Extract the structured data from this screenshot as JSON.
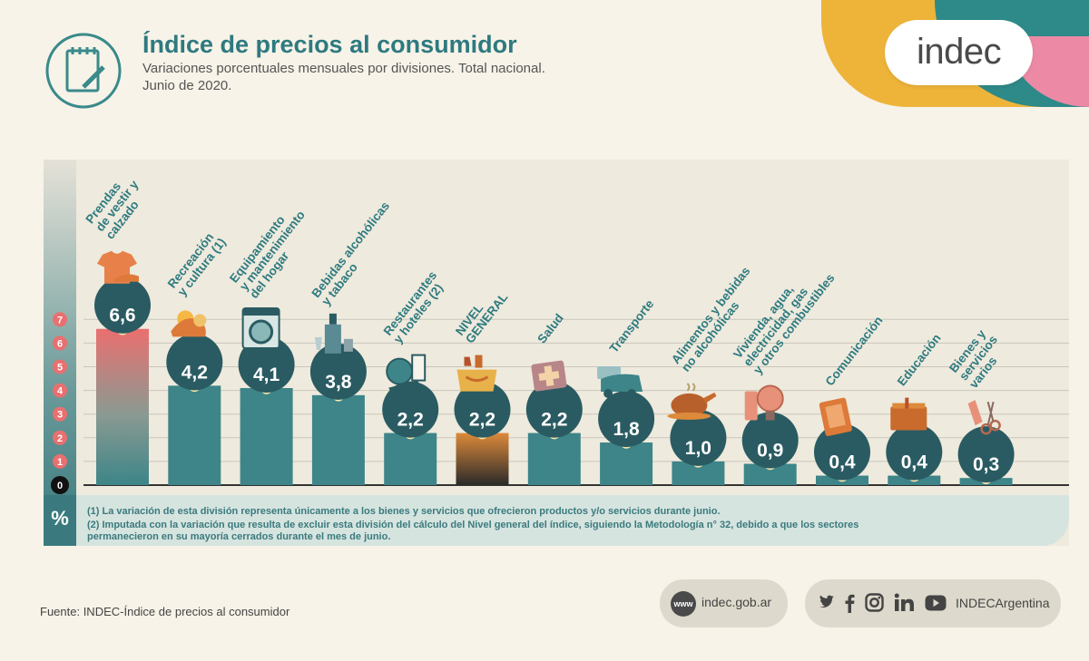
{
  "header": {
    "title": "Índice de precios al consumidor",
    "subtitle_line1": "Variaciones porcentuales mensuales por divisiones. Total nacional.",
    "subtitle_line2": "Junio de 2020."
  },
  "logo": "indec",
  "chart_data": {
    "type": "bar",
    "unit_label": "%",
    "ylim": [
      0,
      7
    ],
    "yticks": [
      "0",
      "1",
      "2",
      "3",
      "4",
      "5",
      "6",
      "7"
    ],
    "grid": true,
    "categories": [
      [
        "Prendas",
        "de vestir y",
        "calzado"
      ],
      [
        "Recreación",
        "y cultura (1)"
      ],
      [
        "Equipamiento",
        "y mantenimiento",
        "del hogar"
      ],
      [
        "Bebidas alcohólicas",
        "y tabaco"
      ],
      [
        "Restaurantes",
        "y hoteles (2)"
      ],
      [
        "NIVEL",
        "GENERAL"
      ],
      [
        "Salud"
      ],
      [
        "Transporte"
      ],
      [
        "Alimentos y bebidas",
        "no alcohólicas"
      ],
      [
        "Vivienda, agua,",
        "electricidad, gas",
        "y otros combustibles"
      ],
      [
        "Comunicación"
      ],
      [
        "Educación"
      ],
      [
        "Bienes y",
        "servicios",
        "varios"
      ]
    ],
    "values": [
      6.6,
      4.2,
      4.1,
      3.8,
      2.2,
      2.2,
      2.2,
      1.8,
      1.0,
      0.9,
      0.4,
      0.4,
      0.3
    ],
    "value_labels": [
      "6,6",
      "4,2",
      "4,1",
      "3,8",
      "2,2",
      "2,2",
      "2,2",
      "1,8",
      "1,0",
      "0,9",
      "0,4",
      "0,4",
      "0,3"
    ],
    "highlight_index": 5,
    "colors": {
      "bar": "#3d8588",
      "bubble": "#2a5b62",
      "dot": "#e8c46a",
      "highlight_value": "#f3c04f",
      "label": "#2e7a80"
    },
    "icons": [
      "tshirt-icon",
      "beach-icon",
      "washing-machine-icon",
      "bottle-icon",
      "hotel-icon",
      "shopping-bag-icon",
      "first-aid-icon",
      "bus-card-icon",
      "roast-chicken-icon",
      "bulb-icon",
      "phone-icon",
      "book-icon",
      "comb-scissors-icon"
    ]
  },
  "notes": {
    "note1": "(1) La variación de esta división representa únicamente a los bienes y servicios que ofrecieron productos y/o servicios durante junio.",
    "note2a": "(2) Imputada con la variación que resulta de excluir esta división del cálculo del Nivel general del índice, siguiendo la Metodología n° 32, debido a que los sectores",
    "note2b": "permanecieron en su mayoría cerrados durante el mes de junio."
  },
  "footer": {
    "source": "Fuente: INDEC-Índice de precios al consumidor",
    "www": "www",
    "website": "indec.gob.ar",
    "social_handle": "INDECArgentina",
    "social_icons": [
      "twitter-icon",
      "facebook-icon",
      "instagram-icon",
      "linkedin-icon",
      "youtube-icon"
    ]
  }
}
